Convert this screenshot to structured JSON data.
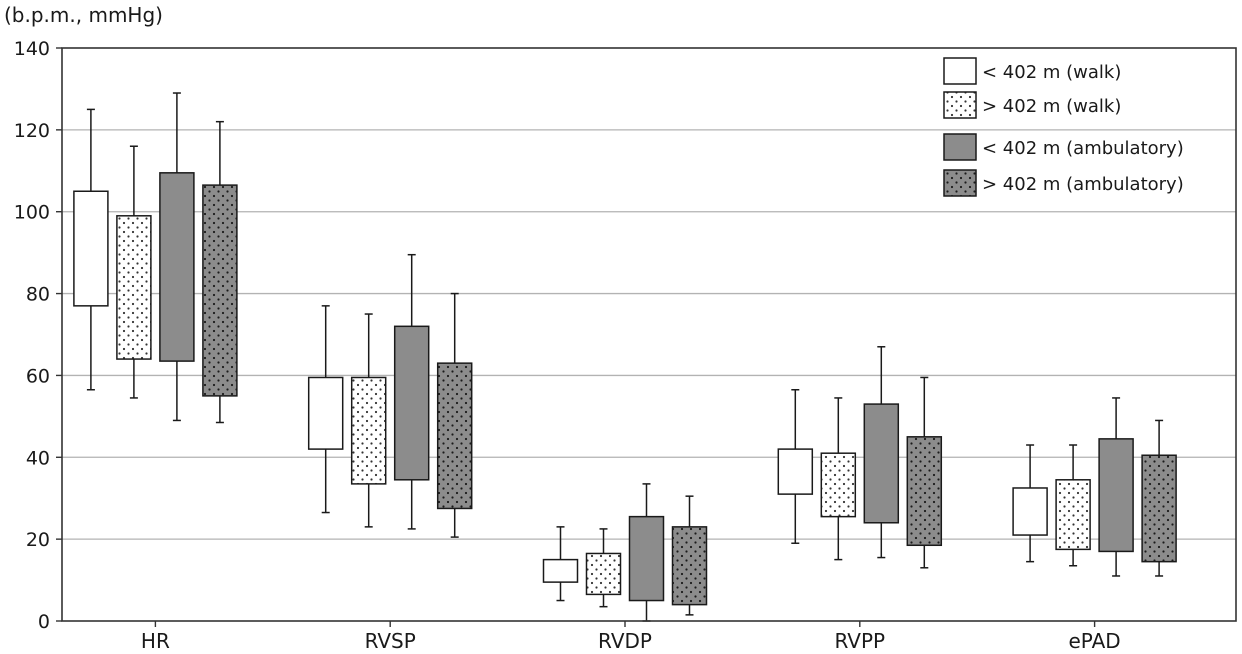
{
  "chart_data": {
    "type": "box",
    "title": "",
    "ylabel": "(b.p.m., mmHg)",
    "xlabel": "",
    "ylim": [
      0,
      140
    ],
    "yticks": [
      0,
      20,
      40,
      60,
      80,
      100,
      120,
      140
    ],
    "grid": "horizontal",
    "legend_position": "top-right",
    "categories": [
      "HR",
      "RVSP",
      "RVDP",
      "RVPP",
      "ePAD"
    ],
    "series": [
      {
        "name": "< 402 m (walk)",
        "fill": "#ffffff",
        "dotted": false,
        "boxes": [
          {
            "min": 56.5,
            "q1": 77,
            "q3": 105,
            "max": 125
          },
          {
            "min": 26.5,
            "q1": 42,
            "q3": 59.5,
            "max": 77
          },
          {
            "min": 5,
            "q1": 9.5,
            "q3": 15,
            "max": 23
          },
          {
            "min": 19,
            "q1": 31,
            "q3": 42,
            "max": 56.5
          },
          {
            "min": 14.5,
            "q1": 21,
            "q3": 32.5,
            "max": 43
          }
        ]
      },
      {
        "name": "> 402 m (walk)",
        "fill": "#ffffff",
        "dotted": true,
        "boxes": [
          {
            "min": 54.5,
            "q1": 64,
            "q3": 99,
            "max": 116
          },
          {
            "min": 23,
            "q1": 33.5,
            "q3": 59.5,
            "max": 75
          },
          {
            "min": 3.5,
            "q1": 6.5,
            "q3": 16.5,
            "max": 22.5
          },
          {
            "min": 15,
            "q1": 25.5,
            "q3": 41,
            "max": 54.5
          },
          {
            "min": 13.5,
            "q1": 17.5,
            "q3": 34.5,
            "max": 43
          }
        ]
      },
      {
        "name": "< 402 m (ambulatory)",
        "fill": "#8c8c8c",
        "dotted": false,
        "boxes": [
          {
            "min": 49,
            "q1": 63.5,
            "q3": 109.5,
            "max": 129
          },
          {
            "min": 22.5,
            "q1": 34.5,
            "q3": 72,
            "max": 89.5
          },
          {
            "min": 0,
            "q1": 5,
            "q3": 25.5,
            "max": 33.5
          },
          {
            "min": 15.5,
            "q1": 24,
            "q3": 53,
            "max": 67
          },
          {
            "min": 11,
            "q1": 17,
            "q3": 44.5,
            "max": 54.5
          }
        ]
      },
      {
        "name": "> 402 m (ambulatory)",
        "fill": "#8c8c8c",
        "dotted": true,
        "boxes": [
          {
            "min": 48.5,
            "q1": 55,
            "q3": 106.5,
            "max": 122
          },
          {
            "min": 20.5,
            "q1": 27.5,
            "q3": 63,
            "max": 80
          },
          {
            "min": 1.5,
            "q1": 4,
            "q3": 23,
            "max": 30.5
          },
          {
            "min": 13,
            "q1": 18.5,
            "q3": 45,
            "max": 59.5
          },
          {
            "min": 11,
            "q1": 14.5,
            "q3": 40.5,
            "max": 49
          }
        ]
      }
    ]
  }
}
